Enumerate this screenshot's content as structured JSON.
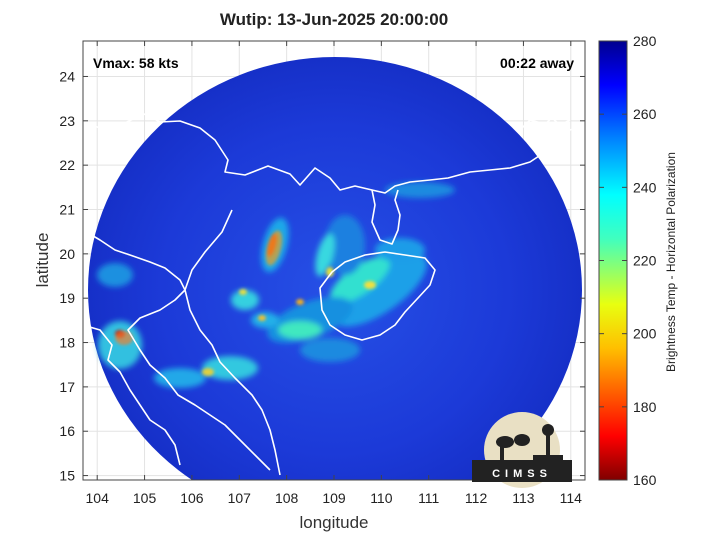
{
  "title": "Wutip: 13-Jun-2025 20:00:00",
  "vmax_label": "Vmax: 58 kts",
  "time_away_label": "00:22 away",
  "xlabel": "longitude",
  "ylabel": "latitude",
  "x_ticks": [
    "104",
    "105",
    "106",
    "107",
    "108",
    "109",
    "110",
    "111",
    "112",
    "113",
    "114"
  ],
  "y_ticks": [
    "24",
    "23",
    "22",
    "21",
    "20",
    "19",
    "18",
    "17",
    "16",
    "15"
  ],
  "colorbar": {
    "title": "Brightness Temp - Horizontal Polarization",
    "ticks": [
      "280",
      "260",
      "240",
      "220",
      "200",
      "180",
      "160"
    ],
    "range": [
      160,
      280
    ],
    "colormap": "jet-reversed"
  },
  "logo_text": "CIMSS",
  "colors": {
    "background_cold": "#1a33d6",
    "colorbar_top": "#00008f",
    "colorbar_bottom": "#800000",
    "coastline": "#ffffff"
  },
  "map_data": {
    "lon_range": [
      103.7,
      114.3
    ],
    "lat_range": [
      14.9,
      24.8
    ],
    "swath_center": [
      108.65,
      19.6
    ],
    "swath_radius_deg": 5.2,
    "storm_center": [
      109.1,
      19.9
    ]
  }
}
